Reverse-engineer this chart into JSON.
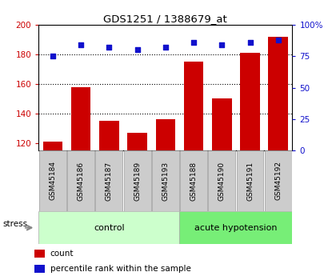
{
  "title": "GDS1251 / 1388679_at",
  "samples": [
    "GSM45184",
    "GSM45186",
    "GSM45187",
    "GSM45189",
    "GSM45193",
    "GSM45188",
    "GSM45190",
    "GSM45191",
    "GSM45192"
  ],
  "counts": [
    121,
    158,
    135,
    127,
    136,
    175,
    150,
    181,
    192
  ],
  "percentile_ranks": [
    75,
    84,
    82,
    80,
    82,
    86,
    84,
    86,
    88
  ],
  "bar_color": "#cc0000",
  "dot_color": "#1111cc",
  "control_bg_light": "#ccffcc",
  "control_bg_dark": "#77ee77",
  "sample_bg": "#cccccc",
  "ylim_left": [
    115,
    200
  ],
  "ylim_right": [
    0,
    100
  ],
  "yticks_left": [
    120,
    140,
    160,
    180,
    200
  ],
  "yticks_right": [
    0,
    25,
    50,
    75,
    100
  ],
  "ytick_labels_right": [
    "0",
    "25",
    "50",
    "75",
    "100%"
  ],
  "grid_values": [
    140,
    160,
    180
  ],
  "stress_label": "stress",
  "control_label": "control",
  "acute_label": "acute hypotension",
  "legend_count": "count",
  "legend_pct": "percentile rank within the sample",
  "n_control": 5,
  "n_total": 9
}
